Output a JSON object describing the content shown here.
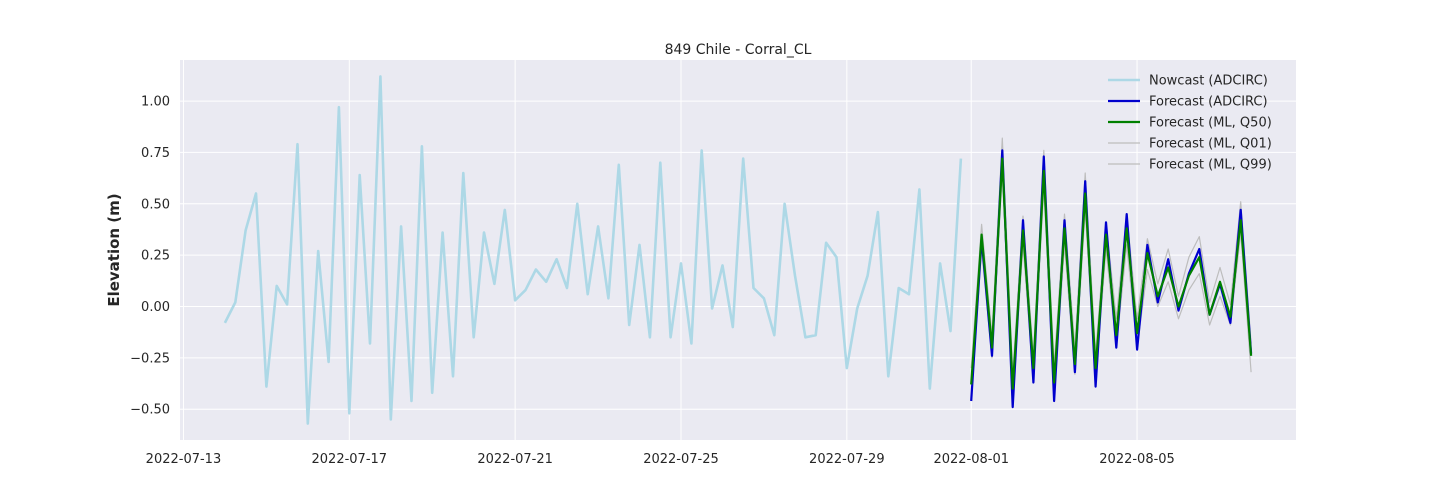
{
  "chart_data": {
    "type": "line",
    "title": "849 Chile - Corral_CL",
    "xlabel": "",
    "ylabel": "Elevation (m)",
    "x_axis": "date",
    "xlim": [
      "2022-07-12T22:00",
      "2022-08-08T20:00"
    ],
    "ylim": [
      -0.65,
      1.2
    ],
    "xticks": [
      "2022-07-13",
      "2022-07-17",
      "2022-07-21",
      "2022-07-25",
      "2022-07-29",
      "2022-08-01",
      "2022-08-05"
    ],
    "yticks": [
      -0.5,
      -0.25,
      0.0,
      0.25,
      0.5,
      0.75,
      1.0
    ],
    "ytick_labels": [
      "−0.50",
      "−0.25",
      "0.00",
      "0.25",
      "0.50",
      "0.75",
      "1.00"
    ],
    "grid": true,
    "legend_position": "upper-right",
    "series": [
      {
        "name": "Nowcast (ADCIRC)",
        "color": "#add8e6",
        "x": [
          "2022-07-14T00:00",
          "2022-07-14T06:00",
          "2022-07-14T12:00",
          "2022-07-14T18:00",
          "2022-07-15T00:00",
          "2022-07-15T06:00",
          "2022-07-15T12:00",
          "2022-07-15T18:00",
          "2022-07-16T00:00",
          "2022-07-16T06:00",
          "2022-07-16T12:00",
          "2022-07-16T18:00",
          "2022-07-17T00:00",
          "2022-07-17T06:00",
          "2022-07-17T12:00",
          "2022-07-17T18:00",
          "2022-07-18T00:00",
          "2022-07-18T06:00",
          "2022-07-18T12:00",
          "2022-07-18T18:00",
          "2022-07-19T00:00",
          "2022-07-19T06:00",
          "2022-07-19T12:00",
          "2022-07-19T18:00",
          "2022-07-20T00:00",
          "2022-07-20T06:00",
          "2022-07-20T12:00",
          "2022-07-20T18:00",
          "2022-07-21T00:00",
          "2022-07-21T06:00",
          "2022-07-21T12:00",
          "2022-07-21T18:00",
          "2022-07-22T00:00",
          "2022-07-22T06:00",
          "2022-07-22T12:00",
          "2022-07-22T18:00",
          "2022-07-23T00:00",
          "2022-07-23T06:00",
          "2022-07-23T12:00",
          "2022-07-23T18:00",
          "2022-07-24T00:00",
          "2022-07-24T06:00",
          "2022-07-24T12:00",
          "2022-07-24T18:00",
          "2022-07-25T00:00",
          "2022-07-25T06:00",
          "2022-07-25T12:00",
          "2022-07-25T18:00",
          "2022-07-26T00:00",
          "2022-07-26T06:00",
          "2022-07-26T12:00",
          "2022-07-26T18:00",
          "2022-07-27T00:00",
          "2022-07-27T06:00",
          "2022-07-27T12:00",
          "2022-07-27T18:00",
          "2022-07-28T00:00",
          "2022-07-28T06:00",
          "2022-07-28T12:00",
          "2022-07-28T18:00",
          "2022-07-29T00:00",
          "2022-07-29T06:00",
          "2022-07-29T12:00",
          "2022-07-29T18:00",
          "2022-07-30T00:00",
          "2022-07-30T06:00",
          "2022-07-30T12:00",
          "2022-07-30T18:00",
          "2022-07-31T00:00",
          "2022-07-31T06:00",
          "2022-07-31T12:00",
          "2022-07-31T18:00"
        ],
        "values": [
          -0.08,
          0.02,
          0.37,
          0.55,
          -0.39,
          0.1,
          0.01,
          0.79,
          -0.57,
          0.27,
          -0.27,
          0.97,
          -0.52,
          0.64,
          -0.18,
          1.12,
          -0.55,
          0.39,
          -0.46,
          0.78,
          -0.42,
          0.36,
          -0.34,
          0.65,
          -0.15,
          0.36,
          0.11,
          0.47,
          0.03,
          0.08,
          0.18,
          0.12,
          0.23,
          0.09,
          0.5,
          0.06,
          0.39,
          0.04,
          0.69,
          -0.09,
          0.3,
          -0.15,
          0.7,
          -0.15,
          0.21,
          -0.18,
          0.76,
          -0.01,
          0.2,
          -0.1,
          0.72,
          0.09,
          0.04,
          -0.14,
          0.5,
          0.15,
          -0.15,
          -0.14,
          0.31,
          0.24,
          -0.3,
          -0.01,
          0.15,
          0.46,
          -0.34,
          0.09,
          0.06,
          0.57,
          -0.4,
          0.21,
          -0.12,
          0.72
        ]
      },
      {
        "name": "Forecast (ADCIRC)",
        "color": "#0000cd",
        "x": [
          "2022-08-01T00:00",
          "2022-08-01T06:00",
          "2022-08-01T12:00",
          "2022-08-01T18:00",
          "2022-08-02T00:00",
          "2022-08-02T06:00",
          "2022-08-02T12:00",
          "2022-08-02T18:00",
          "2022-08-03T00:00",
          "2022-08-03T06:00",
          "2022-08-03T12:00",
          "2022-08-03T18:00",
          "2022-08-04T00:00",
          "2022-08-04T06:00",
          "2022-08-04T12:00",
          "2022-08-04T18:00",
          "2022-08-05T00:00",
          "2022-08-05T06:00",
          "2022-08-05T12:00",
          "2022-08-05T18:00",
          "2022-08-06T00:00",
          "2022-08-06T06:00",
          "2022-08-06T12:00",
          "2022-08-06T18:00",
          "2022-08-07T00:00",
          "2022-08-07T06:00",
          "2022-08-07T12:00",
          "2022-08-07T18:00",
          "2022-08-08T00:00"
        ],
        "values": [
          -0.46,
          0.33,
          -0.24,
          0.76,
          -0.49,
          0.42,
          -0.37,
          0.73,
          -0.46,
          0.42,
          -0.32,
          0.61,
          -0.39,
          0.41,
          -0.2,
          0.45,
          -0.21,
          0.3,
          0.02,
          0.23,
          -0.02,
          0.16,
          0.28,
          -0.04,
          0.11,
          -0.08,
          0.47,
          -0.23,
          null
        ]
      },
      {
        "name": "Forecast (ML, Q50)",
        "color": "#008000",
        "x": [
          "2022-08-01T00:00",
          "2022-08-01T06:00",
          "2022-08-01T12:00",
          "2022-08-01T18:00",
          "2022-08-02T00:00",
          "2022-08-02T06:00",
          "2022-08-02T12:00",
          "2022-08-02T18:00",
          "2022-08-03T00:00",
          "2022-08-03T06:00",
          "2022-08-03T12:00",
          "2022-08-03T18:00",
          "2022-08-04T00:00",
          "2022-08-04T06:00",
          "2022-08-04T12:00",
          "2022-08-04T18:00",
          "2022-08-05T00:00",
          "2022-08-05T06:00",
          "2022-08-05T12:00",
          "2022-08-05T18:00",
          "2022-08-06T00:00",
          "2022-08-06T06:00",
          "2022-08-06T12:00",
          "2022-08-06T18:00",
          "2022-08-07T00:00",
          "2022-08-07T06:00",
          "2022-08-07T12:00",
          "2022-08-07T18:00",
          "2022-08-08T00:00"
        ],
        "values": [
          -0.38,
          0.35,
          -0.2,
          0.72,
          -0.4,
          0.37,
          -0.3,
          0.66,
          -0.37,
          0.38,
          -0.28,
          0.55,
          -0.3,
          0.35,
          -0.14,
          0.38,
          -0.13,
          0.26,
          0.05,
          0.19,
          0.0,
          0.15,
          0.24,
          -0.04,
          0.12,
          -0.05,
          0.42,
          -0.24,
          null
        ]
      },
      {
        "name": "Forecast (ML, Q01)",
        "color": "#bdbdbd",
        "x": [
          "2022-08-01T00:00",
          "2022-08-01T06:00",
          "2022-08-01T12:00",
          "2022-08-01T18:00",
          "2022-08-02T00:00",
          "2022-08-02T06:00",
          "2022-08-02T12:00",
          "2022-08-02T18:00",
          "2022-08-03T00:00",
          "2022-08-03T06:00",
          "2022-08-03T12:00",
          "2022-08-03T18:00",
          "2022-08-04T00:00",
          "2022-08-04T06:00",
          "2022-08-04T12:00",
          "2022-08-04T18:00",
          "2022-08-05T00:00",
          "2022-08-05T06:00",
          "2022-08-05T12:00",
          "2022-08-05T18:00",
          "2022-08-06T00:00",
          "2022-08-06T06:00",
          "2022-08-06T12:00",
          "2022-08-06T18:00",
          "2022-08-07T00:00",
          "2022-08-07T06:00",
          "2022-08-07T12:00",
          "2022-08-07T18:00",
          "2022-08-08T00:00"
        ],
        "values": [
          -0.45,
          0.28,
          -0.25,
          0.65,
          -0.45,
          0.3,
          -0.36,
          0.58,
          -0.43,
          0.3,
          -0.33,
          0.47,
          -0.36,
          0.28,
          -0.2,
          0.3,
          -0.2,
          0.18,
          0.0,
          0.12,
          -0.06,
          0.08,
          0.16,
          -0.09,
          0.05,
          -0.09,
          0.36,
          -0.32,
          null
        ]
      },
      {
        "name": "Forecast (ML, Q99)",
        "color": "#bdbdbd",
        "x": [
          "2022-08-01T00:00",
          "2022-08-01T06:00",
          "2022-08-01T12:00",
          "2022-08-01T18:00",
          "2022-08-02T00:00",
          "2022-08-02T06:00",
          "2022-08-02T12:00",
          "2022-08-02T18:00",
          "2022-08-03T00:00",
          "2022-08-03T06:00",
          "2022-08-03T12:00",
          "2022-08-03T18:00",
          "2022-08-04T00:00",
          "2022-08-04T06:00",
          "2022-08-04T12:00",
          "2022-08-04T18:00",
          "2022-08-05T00:00",
          "2022-08-05T06:00",
          "2022-08-05T12:00",
          "2022-08-05T18:00",
          "2022-08-06T00:00",
          "2022-08-06T06:00",
          "2022-08-06T12:00",
          "2022-08-06T18:00",
          "2022-08-07T00:00",
          "2022-08-07T06:00",
          "2022-08-07T12:00",
          "2022-08-07T18:00",
          "2022-08-08T00:00"
        ],
        "values": [
          -0.3,
          0.4,
          -0.14,
          0.82,
          -0.33,
          0.44,
          -0.24,
          0.76,
          -0.29,
          0.45,
          -0.2,
          0.65,
          -0.23,
          0.41,
          -0.06,
          0.45,
          -0.06,
          0.33,
          0.11,
          0.28,
          0.05,
          0.24,
          0.34,
          0.02,
          0.19,
          0.01,
          0.51,
          -0.18,
          null
        ]
      }
    ]
  }
}
